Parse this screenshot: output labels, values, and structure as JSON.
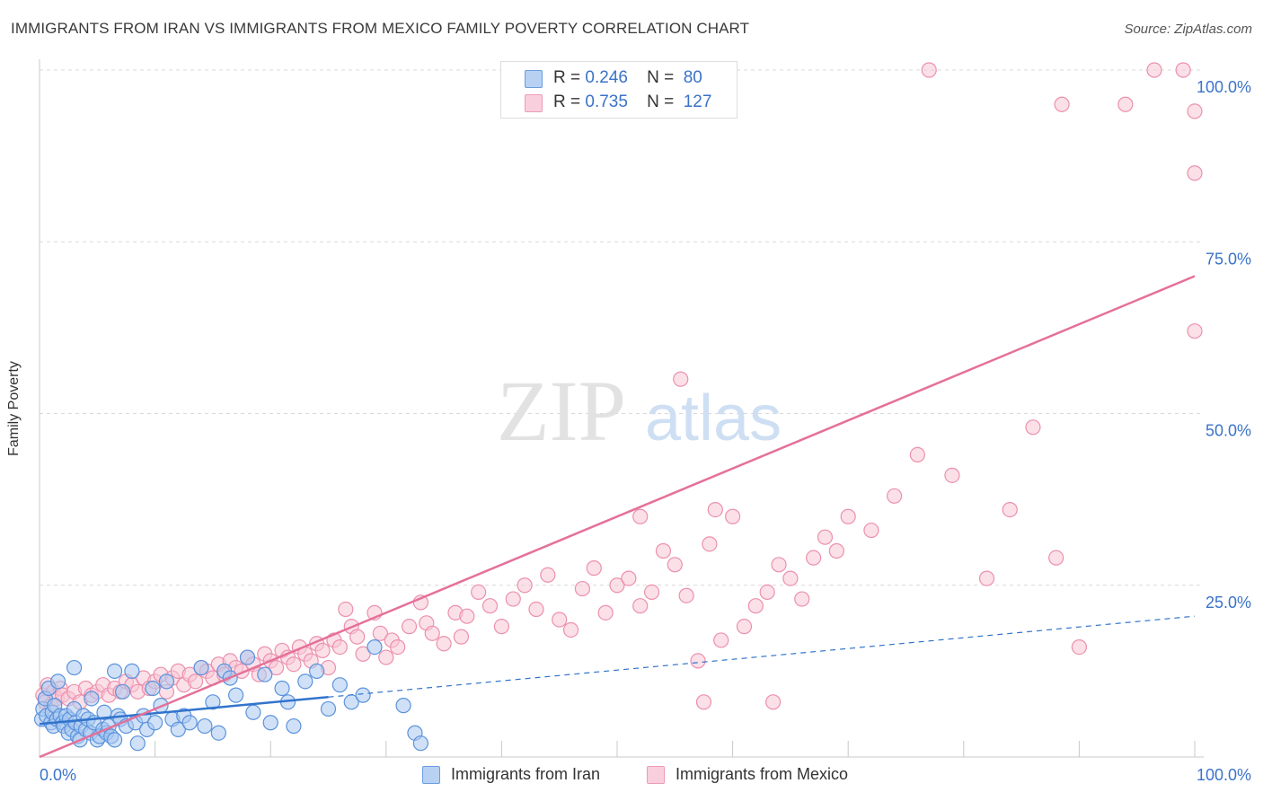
{
  "title": "IMMIGRANTS FROM IRAN VS IMMIGRANTS FROM MEXICO FAMILY POVERTY CORRELATION CHART",
  "source": "Source: ZipAtlas.com",
  "watermark": {
    "zip": "ZIP",
    "atlas": "atlas"
  },
  "legend_top": [
    {
      "r_label": "R =",
      "r_value": "0.246",
      "n_label": "N =",
      "n_value": "80"
    },
    {
      "r_label": "R =",
      "r_value": "0.735",
      "n_label": "N =",
      "n_value": "127"
    }
  ],
  "legend_bottom": [
    {
      "label": "Immigrants from Iran"
    },
    {
      "label": "Immigrants from Mexico"
    }
  ],
  "colors": {
    "iran_fill": "#a9c8f0",
    "iran_stroke": "#5b93dc",
    "iran_line": "#3274cc",
    "mexico_fill": "#f7c6d6",
    "mexico_stroke": "#ec90ae",
    "mexico_line": "#e5709a",
    "axis_text": "#3a73c8",
    "grid": "#d9d9d9"
  },
  "chart_data": {
    "type": "scatter",
    "title": "IMMIGRANTS FROM IRAN VS IMMIGRANTS FROM MEXICO FAMILY POVERTY CORRELATION CHART",
    "xlabel": "",
    "ylabel": "Family Poverty",
    "xlim": [
      0,
      100
    ],
    "ylim": [
      0,
      100
    ],
    "x_tick_labels": [
      "0.0%",
      "100.0%"
    ],
    "y_tick_labels": [
      "25.0%",
      "50.0%",
      "75.0%",
      "100.0%"
    ],
    "y_ticks": [
      25,
      50,
      75,
      100
    ],
    "series": [
      {
        "name": "Immigrants from Iran",
        "R": 0.246,
        "N": 80,
        "trend": {
          "x0": 0,
          "y0": 4.8,
          "x1": 100,
          "y1": 20.5,
          "solid_until_x": 25
        },
        "points": [
          [
            0.2,
            5.5
          ],
          [
            0.3,
            7.0
          ],
          [
            0.5,
            8.5
          ],
          [
            0.6,
            6.0
          ],
          [
            0.8,
            10.0
          ],
          [
            1.0,
            5.0
          ],
          [
            1.1,
            6.5
          ],
          [
            1.2,
            4.5
          ],
          [
            1.3,
            7.5
          ],
          [
            1.5,
            5.5
          ],
          [
            1.6,
            11.0
          ],
          [
            1.8,
            6.0
          ],
          [
            2.0,
            5.0
          ],
          [
            2.1,
            4.5
          ],
          [
            2.3,
            6.0
          ],
          [
            2.5,
            3.5
          ],
          [
            2.6,
            5.5
          ],
          [
            2.8,
            4.0
          ],
          [
            3.0,
            7.0
          ],
          [
            3.1,
            5.0
          ],
          [
            3.3,
            3.0
          ],
          [
            3.5,
            2.5
          ],
          [
            3.6,
            4.5
          ],
          [
            3.8,
            6.0
          ],
          [
            4.0,
            4.0
          ],
          [
            4.2,
            5.5
          ],
          [
            4.4,
            3.5
          ],
          [
            4.5,
            8.5
          ],
          [
            4.7,
            5.0
          ],
          [
            5.0,
            2.5
          ],
          [
            5.2,
            3.0
          ],
          [
            5.5,
            4.0
          ],
          [
            5.6,
            6.5
          ],
          [
            5.8,
            3.5
          ],
          [
            6.0,
            4.5
          ],
          [
            6.2,
            3.0
          ],
          [
            6.5,
            2.5
          ],
          [
            6.8,
            6.0
          ],
          [
            7.0,
            5.5
          ],
          [
            7.2,
            9.5
          ],
          [
            7.5,
            4.5
          ],
          [
            8.0,
            12.5
          ],
          [
            8.3,
            5.0
          ],
          [
            8.5,
            2.0
          ],
          [
            9.0,
            6.0
          ],
          [
            9.3,
            4.0
          ],
          [
            9.8,
            10.0
          ],
          [
            10.0,
            5.0
          ],
          [
            10.5,
            7.5
          ],
          [
            11.0,
            11.0
          ],
          [
            11.5,
            5.5
          ],
          [
            12.0,
            4.0
          ],
          [
            12.5,
            6.0
          ],
          [
            13.0,
            5.0
          ],
          [
            14.0,
            13.0
          ],
          [
            14.3,
            4.5
          ],
          [
            15.0,
            8.0
          ],
          [
            15.5,
            3.5
          ],
          [
            16.0,
            12.5
          ],
          [
            16.5,
            11.5
          ],
          [
            17.0,
            9.0
          ],
          [
            18.0,
            14.5
          ],
          [
            18.5,
            6.5
          ],
          [
            19.5,
            12.0
          ],
          [
            20.0,
            5.0
          ],
          [
            21.0,
            10.0
          ],
          [
            21.5,
            8.0
          ],
          [
            22.0,
            4.5
          ],
          [
            23.0,
            11.0
          ],
          [
            24.0,
            12.5
          ],
          [
            25.0,
            7.0
          ],
          [
            26.0,
            10.5
          ],
          [
            27.0,
            8.0
          ],
          [
            28.0,
            9.0
          ],
          [
            29.0,
            16.0
          ],
          [
            31.5,
            7.5
          ],
          [
            32.5,
            3.5
          ],
          [
            33.0,
            2.0
          ],
          [
            3.0,
            13.0
          ],
          [
            6.5,
            12.5
          ]
        ]
      },
      {
        "name": "Immigrants from Mexico",
        "R": 0.735,
        "N": 127,
        "trend": {
          "x0": 0,
          "y0": 0.0,
          "x1": 100,
          "y1": 70.0
        },
        "points": [
          [
            0.3,
            9.0
          ],
          [
            0.5,
            8.0
          ],
          [
            0.7,
            10.5
          ],
          [
            1.0,
            7.5
          ],
          [
            1.2,
            9.5
          ],
          [
            1.5,
            8.5
          ],
          [
            1.8,
            10.0
          ],
          [
            2.0,
            9.0
          ],
          [
            2.5,
            8.5
          ],
          [
            3.0,
            9.5
          ],
          [
            3.5,
            8.0
          ],
          [
            4.0,
            10.0
          ],
          [
            4.5,
            9.0
          ],
          [
            5.0,
            9.5
          ],
          [
            5.5,
            10.5
          ],
          [
            6.0,
            9.0
          ],
          [
            6.5,
            10.0
          ],
          [
            7.0,
            9.5
          ],
          [
            7.5,
            11.0
          ],
          [
            8.0,
            10.5
          ],
          [
            8.5,
            9.5
          ],
          [
            9.0,
            11.5
          ],
          [
            9.5,
            10.0
          ],
          [
            10.0,
            11.0
          ],
          [
            10.5,
            12.0
          ],
          [
            11.0,
            9.5
          ],
          [
            11.5,
            11.5
          ],
          [
            12.0,
            12.5
          ],
          [
            12.5,
            10.5
          ],
          [
            13.0,
            12.0
          ],
          [
            13.5,
            11.0
          ],
          [
            14.0,
            13.0
          ],
          [
            14.5,
            12.5
          ],
          [
            15.0,
            11.5
          ],
          [
            15.5,
            13.5
          ],
          [
            16.0,
            12.0
          ],
          [
            16.5,
            14.0
          ],
          [
            17.0,
            13.0
          ],
          [
            17.5,
            12.5
          ],
          [
            18.0,
            14.5
          ],
          [
            18.5,
            13.5
          ],
          [
            19.0,
            12.0
          ],
          [
            19.5,
            15.0
          ],
          [
            20.0,
            14.0
          ],
          [
            20.5,
            13.0
          ],
          [
            21.0,
            15.5
          ],
          [
            21.5,
            14.5
          ],
          [
            22.0,
            13.5
          ],
          [
            22.5,
            16.0
          ],
          [
            23.0,
            15.0
          ],
          [
            23.5,
            14.0
          ],
          [
            24.0,
            16.5
          ],
          [
            24.5,
            15.5
          ],
          [
            25.0,
            13.0
          ],
          [
            25.5,
            17.0
          ],
          [
            26.0,
            16.0
          ],
          [
            26.5,
            21.5
          ],
          [
            27.0,
            19.0
          ],
          [
            27.5,
            17.5
          ],
          [
            28.0,
            15.0
          ],
          [
            29.0,
            21.0
          ],
          [
            29.5,
            18.0
          ],
          [
            30.0,
            14.5
          ],
          [
            30.5,
            17.0
          ],
          [
            31.0,
            16.0
          ],
          [
            32.0,
            19.0
          ],
          [
            33.0,
            22.5
          ],
          [
            33.5,
            19.5
          ],
          [
            34.0,
            18.0
          ],
          [
            35.0,
            16.5
          ],
          [
            36.0,
            21.0
          ],
          [
            36.5,
            17.5
          ],
          [
            37.0,
            20.5
          ],
          [
            38.0,
            24.0
          ],
          [
            39.0,
            22.0
          ],
          [
            40.0,
            19.0
          ],
          [
            41.0,
            23.0
          ],
          [
            42.0,
            25.0
          ],
          [
            43.0,
            21.5
          ],
          [
            44.0,
            26.5
          ],
          [
            45.0,
            20.0
          ],
          [
            46.0,
            18.5
          ],
          [
            47.0,
            24.5
          ],
          [
            48.0,
            27.5
          ],
          [
            49.0,
            21.0
          ],
          [
            50.0,
            25.0
          ],
          [
            51.0,
            26.0
          ],
          [
            52.0,
            22.0
          ],
          [
            53.0,
            24.0
          ],
          [
            54.0,
            30.0
          ],
          [
            55.0,
            28.0
          ],
          [
            56.0,
            23.5
          ],
          [
            57.0,
            14.0
          ],
          [
            58.0,
            31.0
          ],
          [
            59.0,
            17.0
          ],
          [
            60.0,
            35.0
          ],
          [
            61.0,
            19.0
          ],
          [
            62.0,
            22.0
          ],
          [
            63.0,
            24.0
          ],
          [
            64.0,
            28.0
          ],
          [
            65.0,
            26.0
          ],
          [
            66.0,
            23.0
          ],
          [
            67.0,
            29.0
          ],
          [
            68.0,
            32.0
          ],
          [
            69.0,
            30.0
          ],
          [
            70.0,
            35.0
          ],
          [
            72.0,
            33.0
          ],
          [
            74.0,
            38.0
          ],
          [
            76.0,
            44.0
          ],
          [
            79.0,
            41.0
          ],
          [
            82.0,
            26.0
          ],
          [
            84.0,
            36.0
          ],
          [
            86.0,
            48.0
          ],
          [
            88.0,
            29.0
          ],
          [
            90.0,
            16.0
          ],
          [
            52.0,
            35.0
          ],
          [
            55.5,
            55.0
          ],
          [
            58.5,
            36.0
          ],
          [
            63.5,
            8.0
          ],
          [
            57.5,
            8.0
          ],
          [
            94.0,
            95.0
          ],
          [
            96.5,
            100.0
          ],
          [
            99.0,
            100.0
          ],
          [
            100.0,
            62.0
          ],
          [
            100.0,
            85.0
          ],
          [
            100.0,
            94.0
          ],
          [
            88.5,
            95.0
          ],
          [
            77.0,
            100.0
          ]
        ]
      }
    ]
  }
}
